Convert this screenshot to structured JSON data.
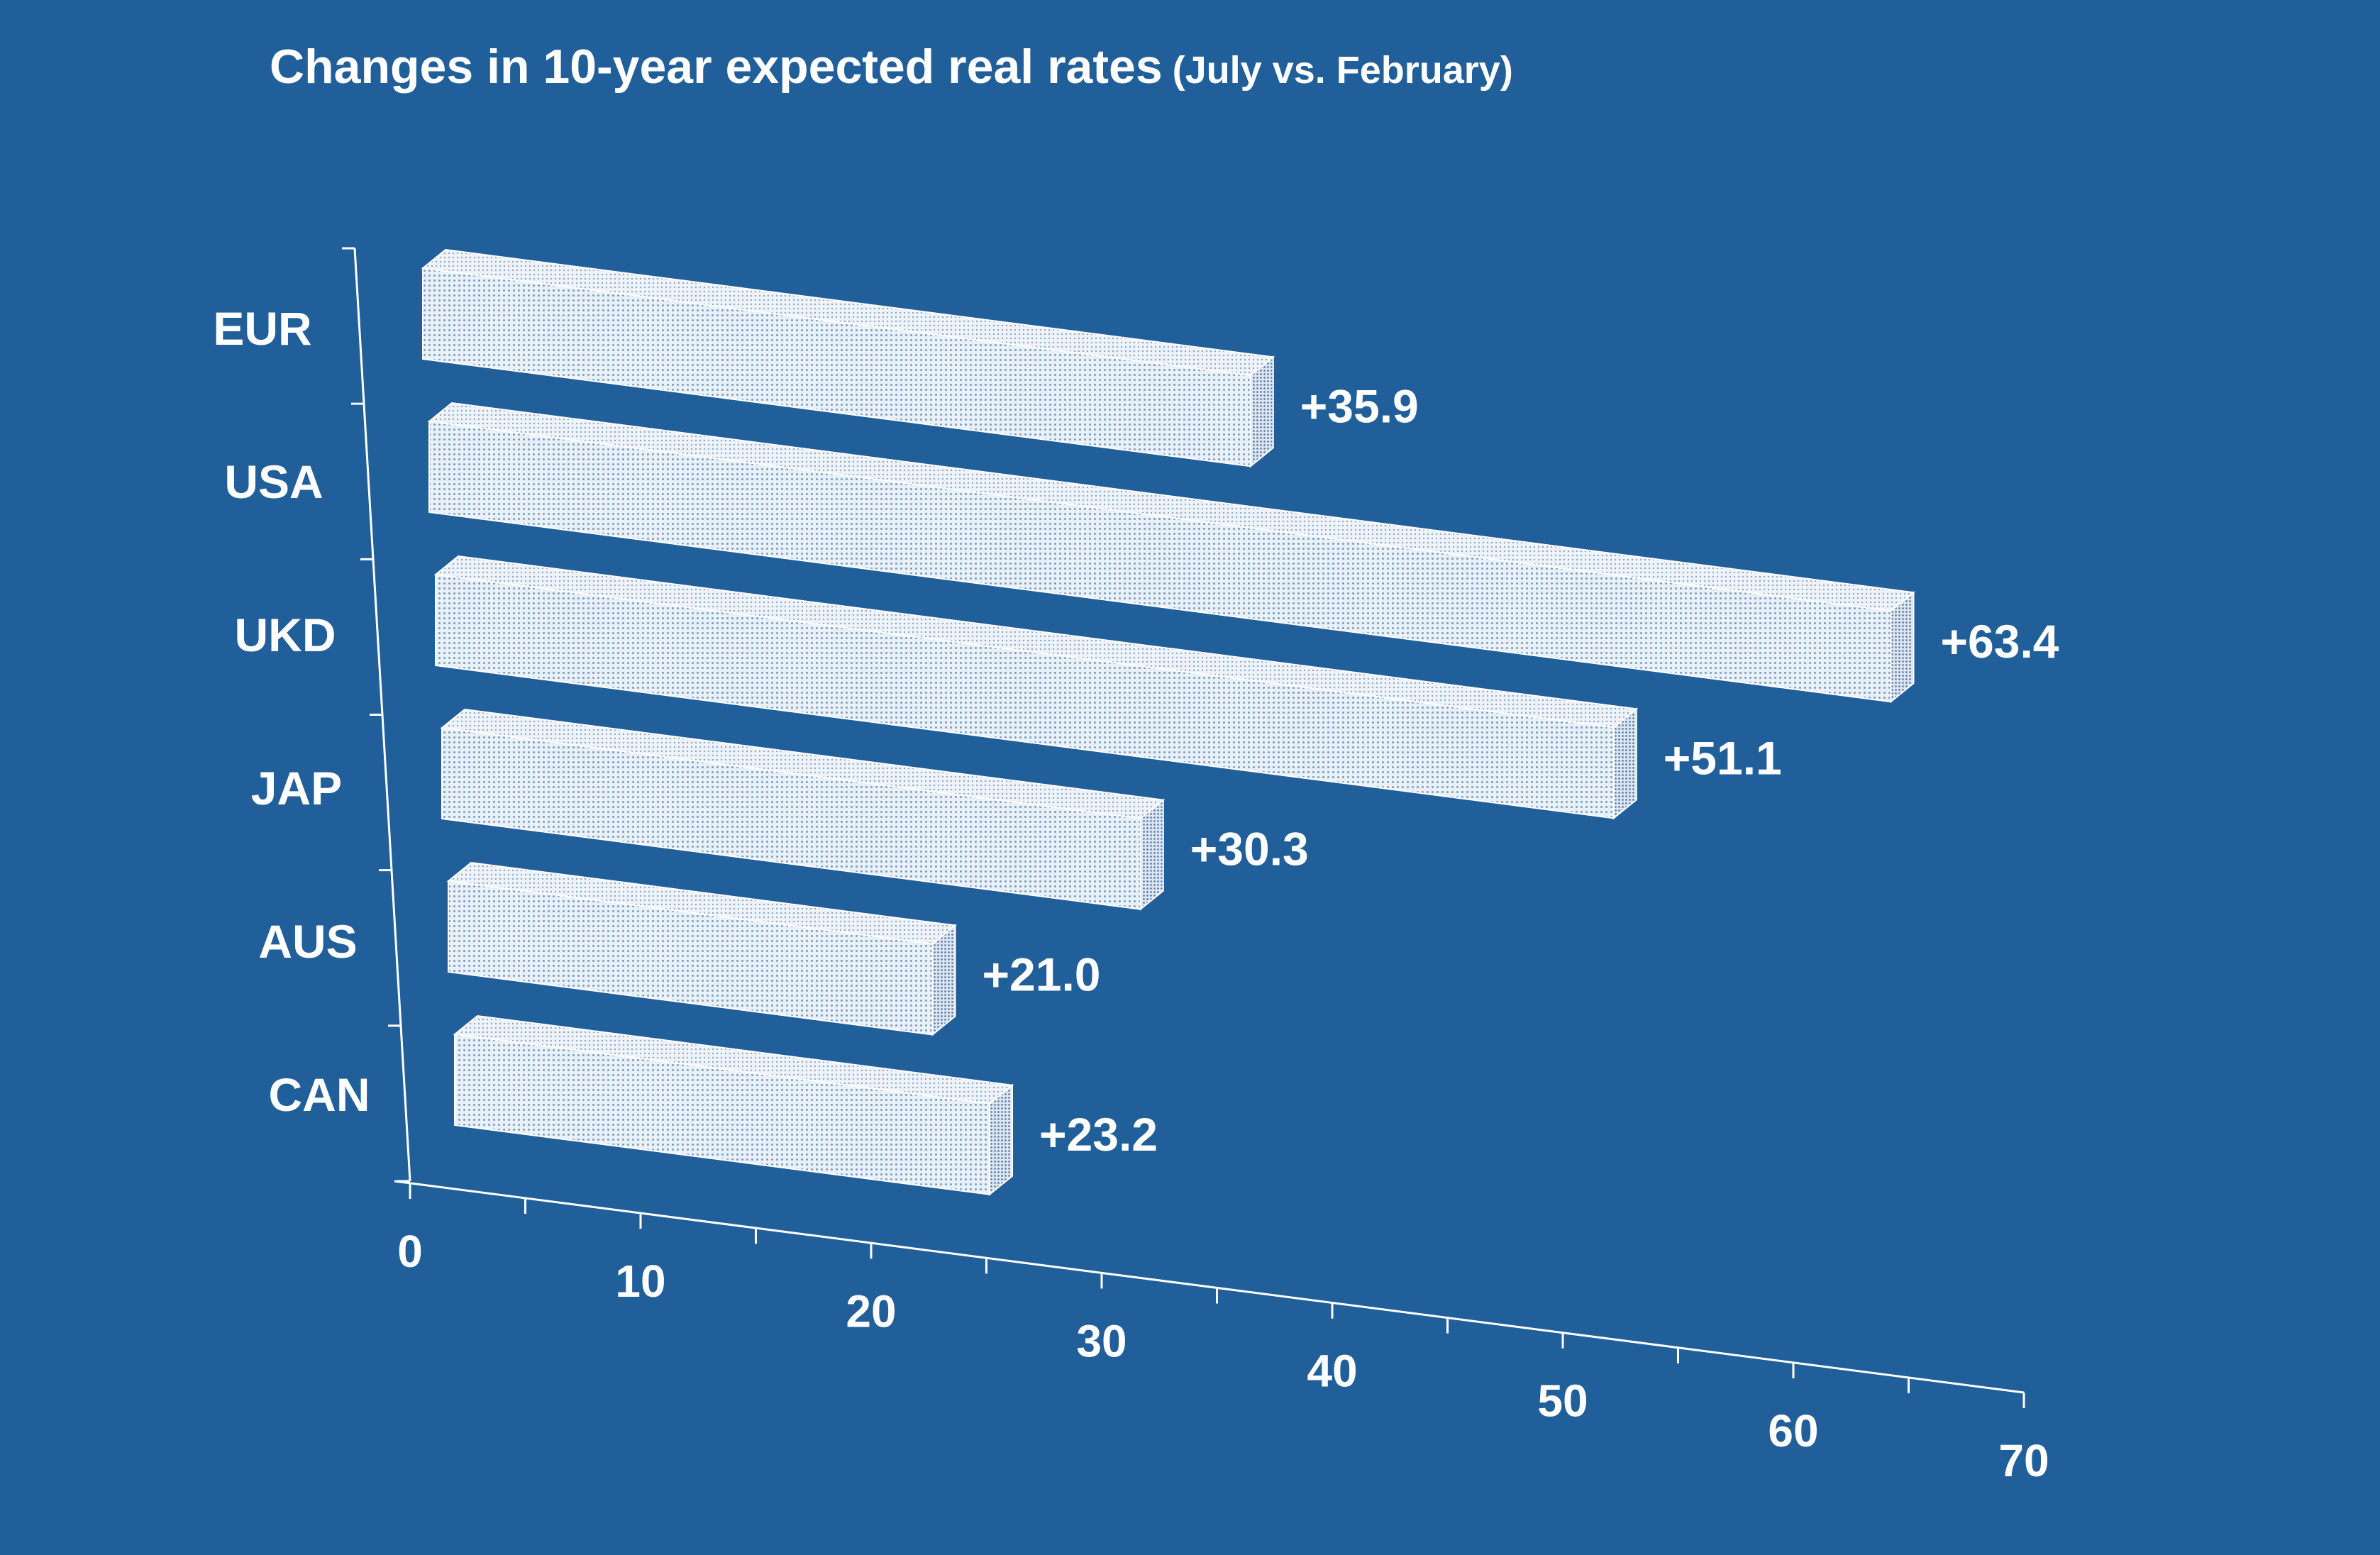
{
  "chart_data": {
    "type": "bar",
    "orientation": "horizontal",
    "style": "3d-perspective",
    "title": "Changes in 10-year expected real rates",
    "subtitle": "(July vs. February)",
    "xlabel": "",
    "ylabel": "",
    "categories": [
      "EUR",
      "USA",
      "UKD",
      "JAP",
      "AUS",
      "CAN"
    ],
    "values": [
      35.9,
      63.4,
      51.1,
      30.3,
      21.0,
      23.2
    ],
    "data_labels": [
      "+35.9",
      "+63.4",
      "+51.1",
      "+30.3",
      "+21.0",
      "+23.2"
    ],
    "xlim": [
      0,
      70
    ],
    "x_ticks": [
      0,
      10,
      20,
      30,
      40,
      50,
      60,
      70
    ],
    "x_tick_labels": [
      "0",
      "10",
      "20",
      "30",
      "40",
      "50",
      "60",
      "70"
    ],
    "grid": false,
    "legend": "none",
    "colors": {
      "background": "#215f9a",
      "text": "#ffffff",
      "bar_fill": "#e6eff8",
      "bar_dots": "#6f8fb6",
      "axis": "#ffffff"
    }
  }
}
